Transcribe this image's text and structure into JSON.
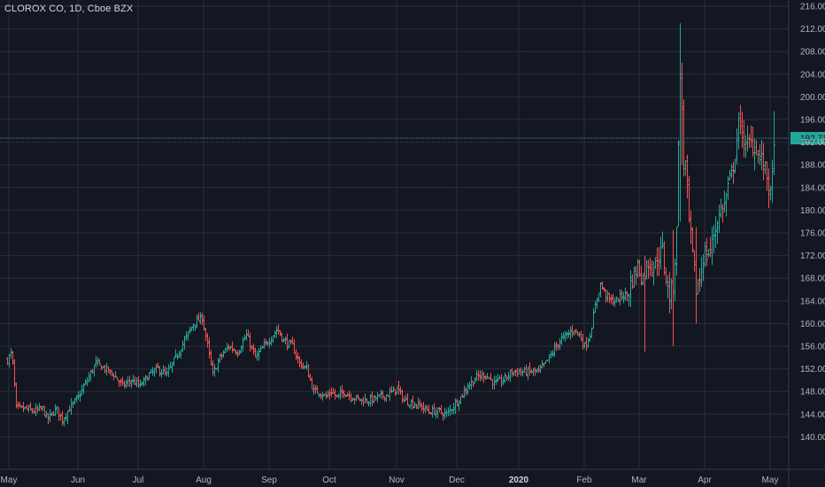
{
  "header": {
    "symbol_title": "CLOROX CO, 1D, Cboe BZX"
  },
  "colors": {
    "background": "#131722",
    "grid": "#2a2e39",
    "up": "#26a69a",
    "down": "#ef5350",
    "last_price_line": "#26a69a"
  },
  "chart_data": {
    "type": "ohlc",
    "title": "CLOROX CO, 1D, Cboe BZX",
    "xlabel": "",
    "ylabel": "",
    "ylim": [
      137.5,
      217
    ],
    "y_ticks": [
      140,
      144,
      148,
      152,
      156,
      160,
      164,
      168,
      172,
      176,
      180,
      184,
      188,
      192,
      196,
      200,
      204,
      208,
      212,
      216
    ],
    "y_tick_labels": [
      "140.00",
      "144.00",
      "148.00",
      "152.00",
      "156.00",
      "160.00",
      "164.00",
      "168.00",
      "172.00",
      "176.00",
      "180.00",
      "184.00",
      "188.00",
      "192.00",
      "196.00",
      "200.00",
      "204.00",
      "208.00",
      "212.00",
      "216.00"
    ],
    "x_labels": [
      {
        "label": "May",
        "t": 2,
        "bold": false
      },
      {
        "label": "Jun",
        "t": 80,
        "bold": false
      },
      {
        "label": "Jul",
        "t": 148,
        "bold": false
      },
      {
        "label": "Aug",
        "t": 222,
        "bold": false
      },
      {
        "label": "Sep",
        "t": 296,
        "bold": false
      },
      {
        "label": "Oct",
        "t": 364,
        "bold": false
      },
      {
        "label": "Nov",
        "t": 440,
        "bold": false
      },
      {
        "label": "Dec",
        "t": 508,
        "bold": false
      },
      {
        "label": "2020",
        "t": 578,
        "bold": true
      },
      {
        "label": "Feb",
        "t": 652,
        "bold": false
      },
      {
        "label": "Mar",
        "t": 714,
        "bold": false
      },
      {
        "label": "Apr",
        "t": 788,
        "bold": false
      },
      {
        "label": "May",
        "t": 862,
        "bold": false
      }
    ],
    "last_price": 192.71,
    "last_price_label": "192.71",
    "anchors": [
      [
        0,
        153.5
      ],
      [
        5,
        155
      ],
      [
        10,
        145
      ],
      [
        20,
        145
      ],
      [
        30,
        144.5
      ],
      [
        40,
        145
      ],
      [
        45,
        143
      ],
      [
        55,
        145
      ],
      [
        62,
        143
      ],
      [
        70,
        145
      ],
      [
        80,
        147
      ],
      [
        90,
        150
      ],
      [
        100,
        153
      ],
      [
        110,
        152
      ],
      [
        120,
        151
      ],
      [
        130,
        149
      ],
      [
        140,
        150
      ],
      [
        150,
        149
      ],
      [
        160,
        151
      ],
      [
        170,
        152
      ],
      [
        180,
        151
      ],
      [
        190,
        154
      ],
      [
        200,
        157
      ],
      [
        210,
        160
      ],
      [
        220,
        161
      ],
      [
        225,
        157
      ],
      [
        232,
        151
      ],
      [
        240,
        154
      ],
      [
        250,
        156
      ],
      [
        260,
        155
      ],
      [
        270,
        158
      ],
      [
        280,
        154
      ],
      [
        290,
        156
      ],
      [
        300,
        158
      ],
      [
        305,
        159
      ],
      [
        312,
        157
      ],
      [
        322,
        156
      ],
      [
        330,
        153
      ],
      [
        338,
        152
      ],
      [
        346,
        148
      ],
      [
        352,
        148
      ],
      [
        360,
        147
      ],
      [
        366,
        148
      ],
      [
        372,
        147
      ],
      [
        380,
        148
      ],
      [
        390,
        147
      ],
      [
        400,
        146.5
      ],
      [
        410,
        146.5
      ],
      [
        420,
        147
      ],
      [
        430,
        147.5
      ],
      [
        440,
        148.5
      ],
      [
        448,
        146.5
      ],
      [
        456,
        146
      ],
      [
        466,
        145.5
      ],
      [
        476,
        144.5
      ],
      [
        486,
        144.5
      ],
      [
        496,
        144
      ],
      [
        504,
        145.5
      ],
      [
        512,
        147
      ],
      [
        520,
        149
      ],
      [
        530,
        150.5
      ],
      [
        540,
        151
      ],
      [
        550,
        149.5
      ],
      [
        560,
        150
      ],
      [
        570,
        151.5
      ],
      [
        580,
        151.5
      ],
      [
        590,
        151.5
      ],
      [
        600,
        151.5
      ],
      [
        608,
        153
      ],
      [
        616,
        155
      ],
      [
        624,
        157
      ],
      [
        632,
        158
      ],
      [
        640,
        159
      ],
      [
        646,
        158
      ],
      [
        652,
        156
      ],
      [
        658,
        158
      ],
      [
        664,
        163
      ],
      [
        670,
        167
      ],
      [
        676,
        165
      ],
      [
        682,
        164
      ],
      [
        688,
        164
      ],
      [
        694,
        165
      ],
      [
        700,
        165
      ],
      [
        706,
        168
      ],
      [
        712,
        170
      ],
      [
        718,
        168
      ],
      [
        724,
        171
      ],
      [
        730,
        170
      ],
      [
        736,
        172
      ],
      [
        740,
        173
      ],
      [
        744,
        168
      ],
      [
        748,
        165
      ],
      [
        752,
        167
      ],
      [
        756,
        176
      ],
      [
        758,
        193
      ],
      [
        760,
        203
      ],
      [
        762,
        198
      ],
      [
        764,
        188
      ],
      [
        766,
        188
      ],
      [
        770,
        178
      ],
      [
        774,
        172
      ],
      [
        778,
        166
      ],
      [
        782,
        168
      ],
      [
        786,
        172
      ],
      [
        790,
        172
      ],
      [
        794,
        173
      ],
      [
        798,
        176
      ],
      [
        802,
        178
      ],
      [
        806,
        180
      ],
      [
        810,
        181
      ],
      [
        814,
        184
      ],
      [
        818,
        186
      ],
      [
        822,
        190
      ],
      [
        826,
        195
      ],
      [
        830,
        194
      ],
      [
        834,
        191
      ],
      [
        838,
        192
      ],
      [
        842,
        191.5
      ],
      [
        846,
        191
      ],
      [
        850,
        189.5
      ],
      [
        854,
        188
      ],
      [
        858,
        186
      ],
      [
        861,
        183
      ],
      [
        863,
        182
      ],
      [
        866,
        193
      ]
    ],
    "spikes": [
      {
        "t": 720,
        "hi": 172,
        "lo": 155
      },
      {
        "t": 752,
        "hi": 176.5,
        "lo": 156
      },
      {
        "t": 760,
        "hi": 213,
        "lo": 178
      },
      {
        "t": 762,
        "hi": 206,
        "lo": 188
      },
      {
        "t": 778,
        "hi": 177,
        "lo": 160
      },
      {
        "t": 866,
        "hi": 197.5,
        "lo": 188
      }
    ]
  }
}
